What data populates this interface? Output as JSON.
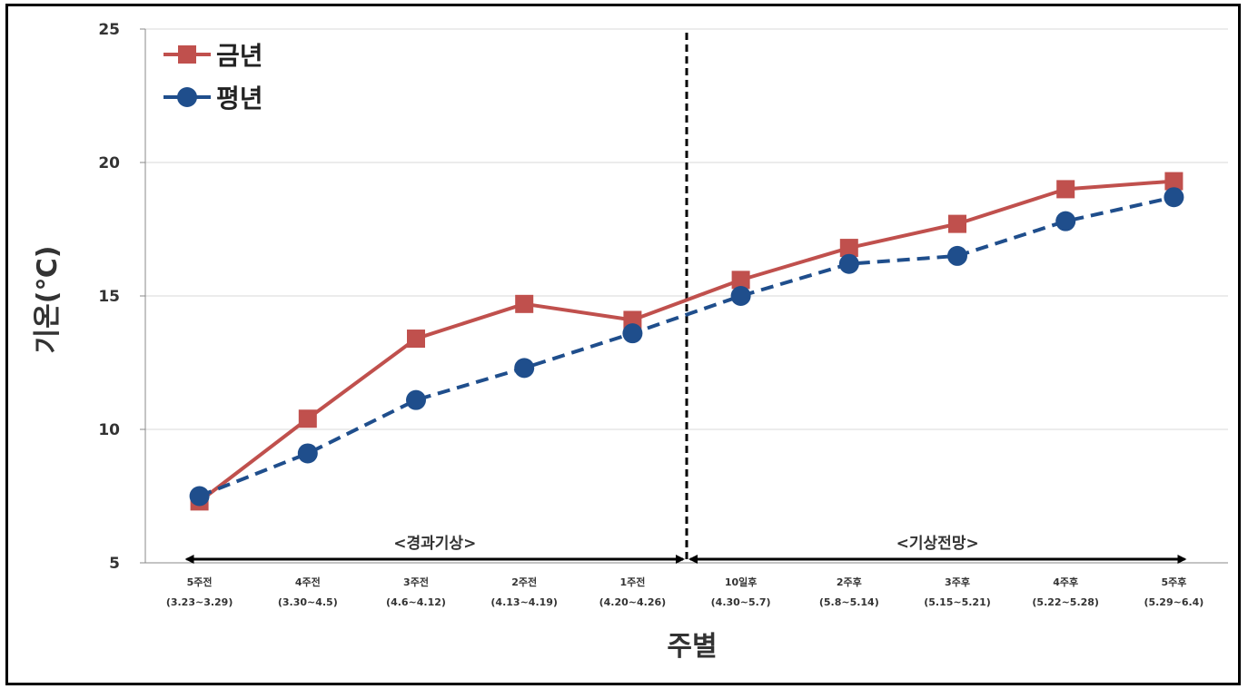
{
  "chart_data": {
    "type": "line",
    "xlabel": "주별",
    "ylabel": "기온(℃)",
    "ylim": [
      5,
      25
    ],
    "yticks": [
      5,
      10,
      15,
      20,
      25
    ],
    "grid": true,
    "legend_position": "top-left",
    "categories": [
      {
        "line1": "5주전",
        "line2": "(3.23~3.29)"
      },
      {
        "line1": "4주전",
        "line2": "(3.30~4.5)"
      },
      {
        "line1": "3주전",
        "line2": "(4.6~4.12)"
      },
      {
        "line1": "2주전",
        "line2": "(4.13~4.19)"
      },
      {
        "line1": "1주전",
        "line2": "(4.20~4.26)"
      },
      {
        "line1": "10일후",
        "line2": "(4.30~5.7)"
      },
      {
        "line1": "2주후",
        "line2": "(5.8~5.14)"
      },
      {
        "line1": "3주후",
        "line2": "(5.15~5.21)"
      },
      {
        "line1": "4주후",
        "line2": "(5.22~5.28)"
      },
      {
        "line1": "5주후",
        "line2": "(5.29~6.4)"
      }
    ],
    "series": [
      {
        "name": "금년",
        "color": "#c0504d",
        "marker": "square",
        "line_style": "solid",
        "values": [
          7.3,
          10.4,
          13.4,
          14.7,
          14.1,
          15.6,
          16.8,
          17.7,
          19.0,
          19.3
        ]
      },
      {
        "name": "평년",
        "color": "#1f4e8c",
        "marker": "circle",
        "line_style": "dashed",
        "values": [
          7.5,
          9.1,
          11.1,
          12.3,
          13.6,
          15.0,
          16.2,
          16.5,
          17.8,
          18.7
        ]
      }
    ],
    "annotations": [
      {
        "label": "<경과기상>",
        "from_index": 0,
        "to_index": 4.5
      },
      {
        "label": "<기상전망>",
        "from_index": 4.5,
        "to_index": 9
      }
    ],
    "divider_after_index": 4.5
  }
}
